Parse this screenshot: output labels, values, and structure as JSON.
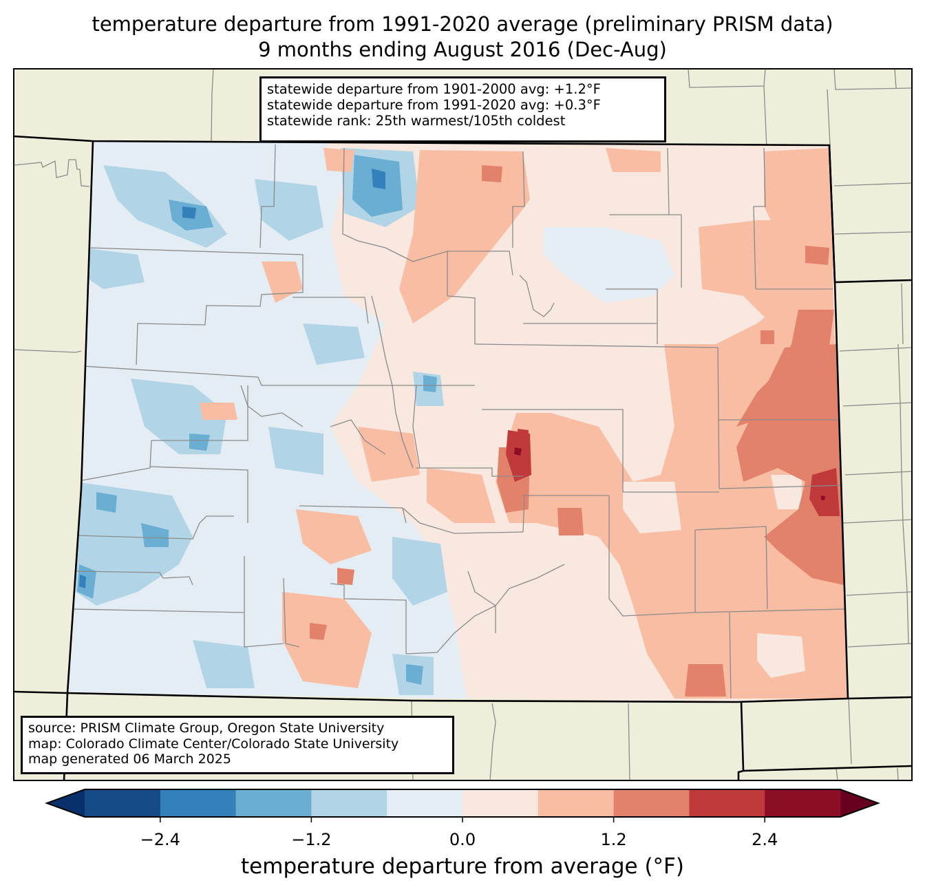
{
  "title": {
    "line1": "temperature departure from 1991-2020 average (preliminary PRISM data)",
    "line2": "9 months ending August 2016 (Dec-Aug)"
  },
  "stats_box": {
    "line1": "statewide departure from 1901-2000 avg: +1.2°F",
    "line2": "statewide departure from 1991-2020 avg: +0.3°F",
    "line3": "statewide rank: 25th warmest/105th coldest"
  },
  "source_box": {
    "line1": "source: PRISM Climate Group, Oregon State University",
    "line2": "map: Colorado Climate Center/Colorado State University",
    "line3": "map generated 06 March 2025"
  },
  "colorbar": {
    "label": "temperature departure from average (°F)",
    "min": -3.0,
    "max": 3.0,
    "step": 0.6,
    "ticks": [
      {
        "value": -2.4,
        "label": "−2.4"
      },
      {
        "value": -1.2,
        "label": "−1.2"
      },
      {
        "value": 0.0,
        "label": "0.0"
      },
      {
        "value": 1.2,
        "label": "1.2"
      },
      {
        "value": 2.4,
        "label": "2.4"
      }
    ],
    "under_color": "#08306b",
    "over_color": "#67001f",
    "colors": [
      "#154a86",
      "#3480ba",
      "#6aaed3",
      "#b1d5e7",
      "#e5edf4",
      "#f9e8df",
      "#f8bda2",
      "#e3826b",
      "#c0393b",
      "#8c0e26"
    ]
  },
  "map": {
    "background_color": "#efeedb",
    "region": "Colorado"
  }
}
